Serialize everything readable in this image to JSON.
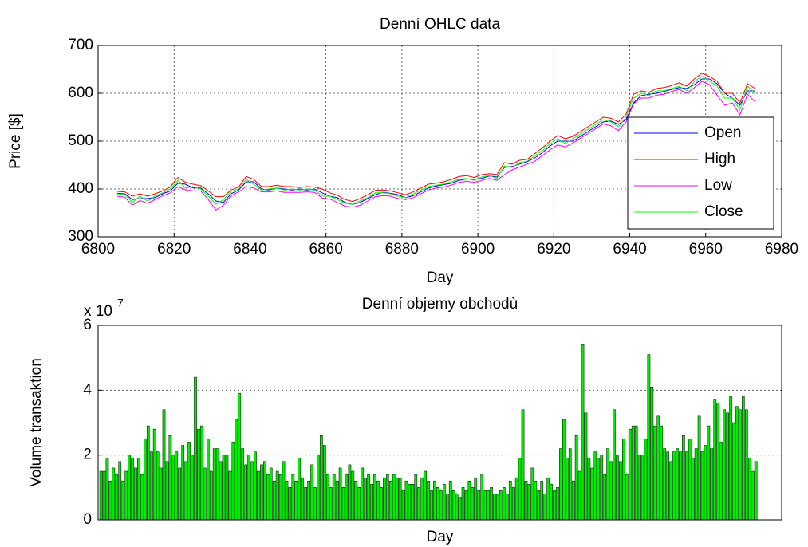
{
  "chart_data": [
    {
      "type": "line",
      "title": "Denní OHLC data",
      "xlabel": "Day",
      "ylabel": "Price [$]",
      "xlim": [
        6800,
        6980
      ],
      "xticks": [
        6800,
        6820,
        6840,
        6860,
        6880,
        6900,
        6920,
        6940,
        6960,
        6980
      ],
      "ylim": [
        300,
        700
      ],
      "yticks": [
        300,
        400,
        500,
        600,
        700
      ],
      "grid": true,
      "legend": "lower right",
      "x": [
        6805,
        6807,
        6809,
        6811,
        6813,
        6815,
        6817,
        6819,
        6821,
        6823,
        6825,
        6827,
        6829,
        6831,
        6833,
        6835,
        6837,
        6839,
        6841,
        6843,
        6845,
        6847,
        6849,
        6851,
        6853,
        6855,
        6857,
        6859,
        6861,
        6863,
        6865,
        6867,
        6869,
        6871,
        6873,
        6875,
        6877,
        6879,
        6881,
        6883,
        6885,
        6887,
        6889,
        6891,
        6893,
        6895,
        6897,
        6899,
        6901,
        6903,
        6905,
        6907,
        6909,
        6911,
        6913,
        6915,
        6917,
        6919,
        6921,
        6923,
        6925,
        6927,
        6929,
        6931,
        6933,
        6935,
        6937,
        6939,
        6941,
        6943,
        6945,
        6947,
        6949,
        6951,
        6953,
        6955,
        6957,
        6959,
        6961,
        6963,
        6965,
        6967,
        6969,
        6971,
        6973
      ],
      "series": [
        {
          "name": "Open",
          "color": "#0000ff",
          "values": [
            391,
            390,
            378,
            380,
            380,
            382,
            390,
            396,
            412,
            410,
            402,
            402,
            390,
            375,
            372,
            390,
            398,
            415,
            415,
            400,
            398,
            402,
            400,
            398,
            400,
            398,
            400,
            392,
            385,
            382,
            372,
            368,
            372,
            380,
            388,
            393,
            391,
            388,
            382,
            386,
            394,
            402,
            406,
            409,
            412,
            418,
            421,
            420,
            422,
            427,
            425,
            445,
            447,
            452,
            457,
            465,
            476,
            490,
            500,
            500,
            500,
            510,
            520,
            530,
            540,
            542,
            535,
            545,
            580,
            595,
            598,
            600,
            604,
            608,
            612,
            610,
            618,
            630,
            630,
            620,
            600,
            590,
            575,
            605,
            605
          ]
        },
        {
          "name": "High",
          "color": "#ff0000",
          "values": [
            395,
            394,
            385,
            390,
            385,
            390,
            396,
            404,
            424,
            414,
            410,
            407,
            396,
            384,
            384,
            398,
            404,
            426,
            420,
            405,
            405,
            408,
            405,
            405,
            403,
            405,
            404,
            400,
            392,
            387,
            378,
            374,
            380,
            388,
            397,
            398,
            396,
            392,
            388,
            394,
            402,
            410,
            412,
            415,
            420,
            426,
            428,
            424,
            430,
            432,
            430,
            455,
            452,
            460,
            462,
            474,
            486,
            500,
            512,
            505,
            510,
            520,
            530,
            540,
            550,
            548,
            540,
            556,
            598,
            605,
            602,
            610,
            612,
            616,
            622,
            615,
            630,
            642,
            635,
            625,
            600,
            600,
            580,
            620,
            610
          ]
        },
        {
          "name": "Low",
          "color": "#ff00ff",
          "values": [
            385,
            383,
            366,
            376,
            370,
            378,
            386,
            392,
            405,
            398,
            396,
            396,
            378,
            356,
            366,
            386,
            394,
            405,
            402,
            394,
            394,
            396,
            393,
            393,
            393,
            394,
            393,
            381,
            379,
            372,
            364,
            362,
            366,
            375,
            384,
            386,
            385,
            380,
            378,
            382,
            390,
            398,
            402,
            404,
            408,
            414,
            416,
            414,
            418,
            422,
            418,
            430,
            440,
            446,
            452,
            458,
            470,
            482,
            492,
            488,
            496,
            506,
            516,
            526,
            536,
            532,
            522,
            540,
            578,
            590,
            590,
            596,
            598,
            604,
            608,
            600,
            612,
            625,
            618,
            596,
            575,
            580,
            555,
            598,
            582
          ]
        },
        {
          "name": "Close",
          "color": "#00ff00",
          "values": [
            390,
            388,
            372,
            385,
            375,
            385,
            392,
            400,
            418,
            402,
            405,
            400,
            385,
            368,
            378,
            395,
            400,
            420,
            410,
            398,
            400,
            402,
            398,
            400,
            398,
            400,
            398,
            385,
            385,
            378,
            370,
            368,
            375,
            382,
            392,
            392,
            390,
            385,
            382,
            390,
            398,
            405,
            408,
            410,
            415,
            420,
            422,
            418,
            425,
            428,
            422,
            448,
            445,
            455,
            458,
            470,
            480,
            495,
            505,
            495,
            505,
            515,
            525,
            535,
            545,
            540,
            530,
            550,
            590,
            600,
            595,
            605,
            605,
            610,
            615,
            605,
            625,
            635,
            625,
            615,
            590,
            590,
            565,
            615,
            600
          ]
        }
      ]
    },
    {
      "type": "bar",
      "title": "Denní objemy obchodù",
      "xlabel": "Day",
      "ylabel": "Volume transaktion",
      "scale_label": "x 10",
      "scale_exponent": "7",
      "color": "#00ee00",
      "ylim": [
        0,
        6
      ],
      "yticks": [
        0,
        2,
        4,
        6
      ],
      "grid": true,
      "values": [
        1.5,
        1.5,
        1.9,
        1.2,
        1.6,
        1.4,
        1.8,
        1.2,
        1.5,
        2.0,
        1.9,
        1.6,
        1.9,
        1.4,
        2.5,
        2.9,
        2.1,
        2.8,
        2.1,
        1.6,
        3.4,
        1.8,
        2.6,
        2.0,
        2.1,
        1.6,
        2.3,
        1.8,
        2.4,
        2.0,
        4.4,
        2.8,
        2.9,
        1.6,
        2.5,
        1.5,
        2.2,
        2.2,
        1.8,
        2.0,
        2.0,
        1.5,
        2.4,
        3.1,
        3.9,
        2.2,
        1.7,
        2.0,
        1.8,
        2.1,
        1.5,
        1.7,
        1.8,
        1.4,
        1.6,
        1.2,
        1.5,
        1.4,
        1.8,
        1.2,
        1.0,
        1.4,
        1.2,
        1.9,
        1.3,
        1.0,
        1.2,
        1.7,
        1.0,
        2.0,
        2.6,
        2.3,
        1.4,
        1.0,
        1.4,
        1.2,
        1.6,
        1.0,
        1.4,
        1.7,
        1.5,
        1.2,
        1.0,
        1.6,
        1.3,
        1.4,
        1.1,
        1.4,
        1.2,
        1.0,
        1.3,
        1.4,
        1.2,
        1.4,
        1.3,
        1.3,
        0.9,
        1.2,
        1.1,
        1.1,
        1.4,
        1.0,
        1.3,
        1.5,
        1.2,
        0.9,
        1.2,
        1.0,
        0.9,
        1.1,
        0.8,
        1.2,
        0.9,
        0.8,
        0.7,
        1.0,
        0.9,
        1.2,
        1.0,
        1.3,
        0.9,
        1.4,
        0.9,
        0.9,
        1.0,
        0.8,
        0.8,
        0.9,
        1.0,
        0.8,
        1.2,
        1.0,
        1.3,
        1.9,
        3.4,
        1.2,
        1.1,
        1.6,
        1.2,
        0.9,
        1.2,
        0.8,
        1.3,
        1.1,
        0.9,
        1.0,
        2.2,
        3.1,
        1.9,
        2.2,
        1.2,
        2.6,
        1.5,
        5.4,
        3.3,
        1.9,
        1.6,
        2.1,
        1.9,
        2.0,
        1.4,
        2.2,
        1.8,
        3.4,
        2.0,
        1.8,
        2.5,
        1.4,
        2.8,
        2.9,
        2.9,
        2.0,
        2.0,
        2.5,
        5.1,
        4.1,
        2.9,
        3.2,
        2.9,
        2.2,
        2.1,
        1.8,
        2.1,
        2.2,
        2.1,
        2.6,
        2.1,
        2.5,
        1.9,
        2.2,
        3.2,
        2.1,
        2.3,
        2.9,
        2.2,
        3.7,
        3.6,
        2.4,
        3.4,
        3.3,
        3.8,
        3.0,
        3.5,
        3.4,
        3.8,
        3.4,
        1.9,
        1.5,
        1.8
      ]
    }
  ]
}
